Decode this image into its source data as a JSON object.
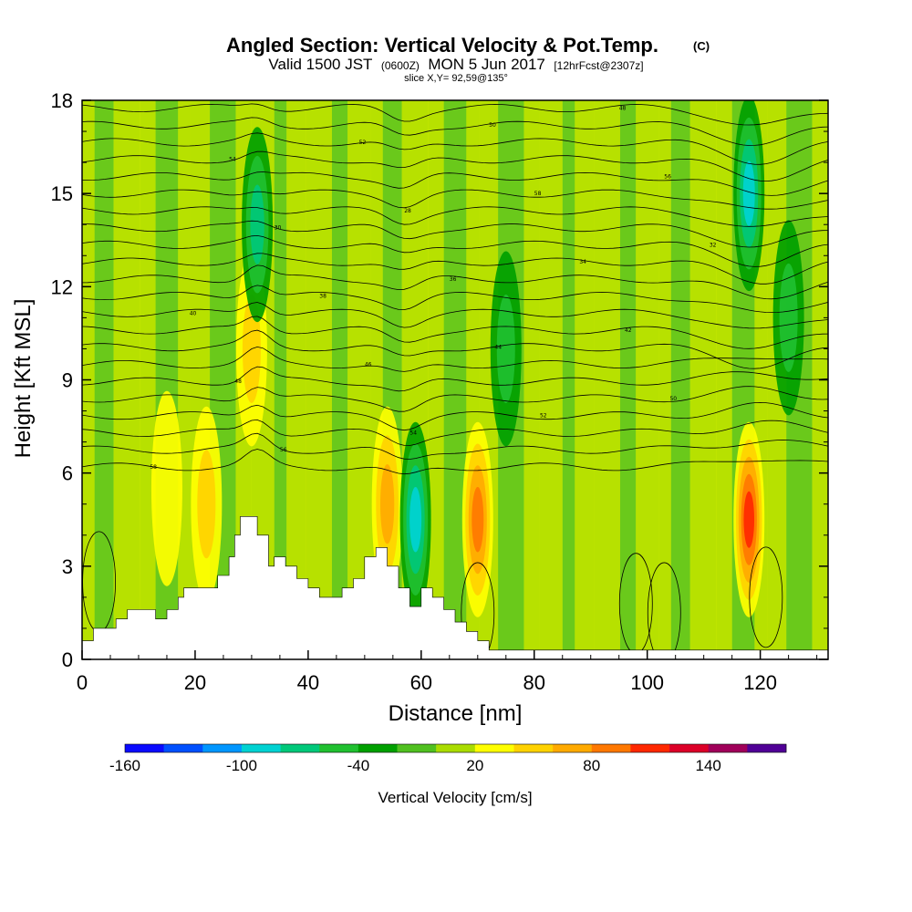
{
  "chart_data": {
    "type": "heatmap",
    "title": "Angled Section: Vertical Velocity & Pot.Temp.",
    "title_units": "(C)",
    "subtitle": {
      "valid_prefix": "Valid 1500 JST",
      "zulu": "(0600Z)",
      "date": "MON 5 Jun 2017",
      "forecast": "[12hrFcst@2307z]"
    },
    "slice_note": "slice X,Y= 92,59@135°",
    "xlabel": "Distance [nm]",
    "ylabel": "Height [Kft MSL]",
    "xlim": [
      0,
      132
    ],
    "ylim": [
      0,
      18
    ],
    "x_ticks": [
      "0",
      "20",
      "40",
      "60",
      "80",
      "100",
      "120"
    ],
    "y_ticks": [
      "0",
      "3",
      "6",
      "9",
      "12",
      "15",
      "18"
    ],
    "colorbar": {
      "title": "Vertical Velocity [cm/s]",
      "min": -160,
      "max": 160,
      "step": 20,
      "labels": [
        "-160",
        "-100",
        "-40",
        "20",
        "80",
        "140"
      ],
      "colors": [
        "#0a0aff",
        "#0050ff",
        "#0096ff",
        "#00d2d2",
        "#00c87a",
        "#20c030",
        "#00a000",
        "#50c020",
        "#aadc00",
        "#ffff00",
        "#ffd200",
        "#ffaa00",
        "#ff7800",
        "#ff2800",
        "#dc0028",
        "#a0005a",
        "#500096"
      ]
    },
    "velocity_cores": [
      {
        "x": 22,
        "z": 5.0,
        "w": 55,
        "kind": "updraft"
      },
      {
        "x": 15,
        "z": 5.5,
        "w": 30,
        "kind": "updraft"
      },
      {
        "x": 30,
        "z": 10.0,
        "w": 40,
        "kind": "updraft"
      },
      {
        "x": 54,
        "z": 5.0,
        "w": 60,
        "kind": "updraft"
      },
      {
        "x": 59,
        "z": 4.5,
        "w": -80,
        "kind": "downdraft"
      },
      {
        "x": 70,
        "z": 4.5,
        "w": 80,
        "kind": "updraft"
      },
      {
        "x": 118,
        "z": 4.5,
        "w": 110,
        "kind": "updraft"
      },
      {
        "x": 118,
        "z": 15.0,
        "w": -80,
        "kind": "downdraft"
      },
      {
        "x": 125,
        "z": 11.0,
        "w": -50,
        "kind": "downdraft"
      },
      {
        "x": 31,
        "z": 14.0,
        "w": -70,
        "kind": "downdraft"
      },
      {
        "x": 75,
        "z": 10.0,
        "w": -40,
        "kind": "downdraft"
      }
    ],
    "contour_labels": [
      "58",
      "56",
      "54",
      "52",
      "50",
      "48",
      "46",
      "44",
      "42",
      "40",
      "38",
      "36",
      "34",
      "32",
      "30",
      "28"
    ],
    "terrain_profile_kft": [
      [
        0,
        0.6
      ],
      [
        2,
        1.0
      ],
      [
        6,
        1.3
      ],
      [
        8,
        1.6
      ],
      [
        12,
        1.6
      ],
      [
        13,
        1.3
      ],
      [
        15,
        1.6
      ],
      [
        17,
        2.0
      ],
      [
        18,
        2.3
      ],
      [
        22,
        2.3
      ],
      [
        24,
        2.7
      ],
      [
        26,
        3.3
      ],
      [
        27,
        4.0
      ],
      [
        28,
        4.6
      ],
      [
        31,
        4.0
      ],
      [
        33,
        3.0
      ],
      [
        34,
        3.3
      ],
      [
        36,
        3.0
      ],
      [
        38,
        2.6
      ],
      [
        40,
        2.3
      ],
      [
        42,
        2.0
      ],
      [
        46,
        2.3
      ],
      [
        48,
        2.6
      ],
      [
        50,
        3.3
      ],
      [
        52,
        3.6
      ],
      [
        54,
        3.0
      ],
      [
        56,
        2.3
      ],
      [
        58,
        1.7
      ],
      [
        60,
        2.3
      ],
      [
        62,
        2.0
      ],
      [
        64,
        1.6
      ],
      [
        66,
        1.2
      ],
      [
        68,
        0.9
      ],
      [
        70,
        0.6
      ],
      [
        72,
        0.3
      ],
      [
        132,
        0.3
      ]
    ]
  }
}
